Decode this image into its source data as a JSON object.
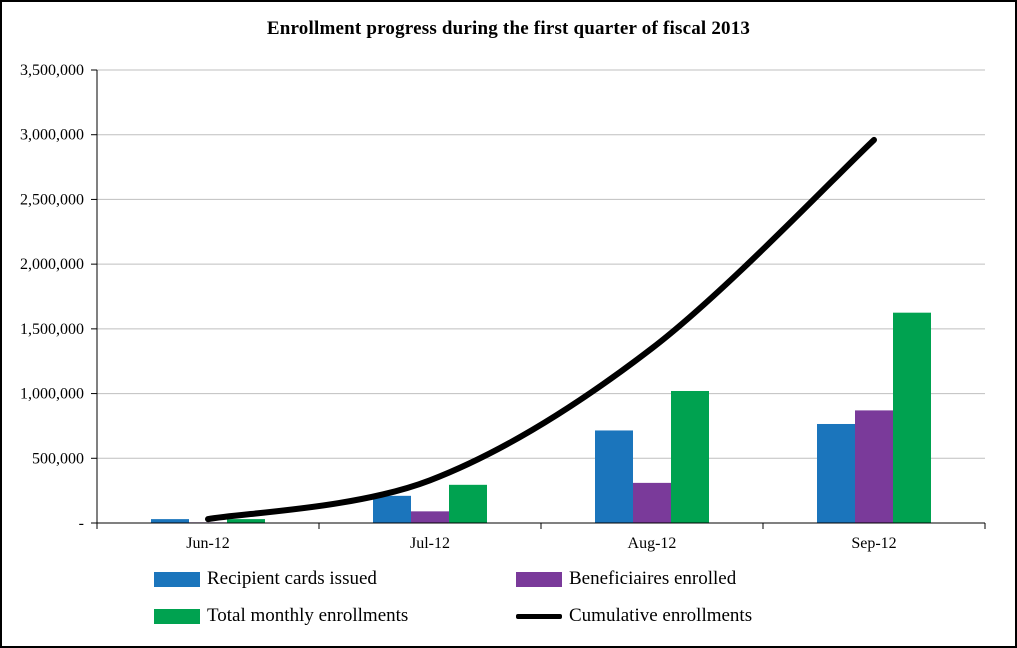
{
  "chart_data": {
    "type": "combo",
    "title": "Enrollment progress during the first quarter of fiscal 2013",
    "categories": [
      "Jun-12",
      "Jul-12",
      "Aug-12",
      "Sep-12"
    ],
    "series": [
      {
        "name": "Recipient cards issued",
        "type": "bar",
        "color": "#1B75BC",
        "values": [
          30000,
          210000,
          715000,
          765000
        ]
      },
      {
        "name": "Beneficiaires enrolled",
        "type": "bar",
        "color": "#7A3A9A",
        "values": [
          5000,
          90000,
          310000,
          870000
        ]
      },
      {
        "name": "Total monthly enrollments",
        "type": "bar",
        "color": "#00A250",
        "values": [
          30000,
          295000,
          1020000,
          1625000
        ]
      },
      {
        "name": "Cumulative enrollments",
        "type": "line",
        "color": "#000000",
        "values": [
          30000,
          330000,
          1350000,
          2960000
        ]
      }
    ],
    "ylim": [
      0,
      3500000
    ],
    "ytick_step": 500000,
    "ytick_labels": [
      "-",
      "500,000",
      "1,000,000",
      "1,500,000",
      "2,000,000",
      "2,500,000",
      "3,000,000",
      "3,500,000"
    ],
    "grid": true,
    "legend_position": "bottom"
  }
}
